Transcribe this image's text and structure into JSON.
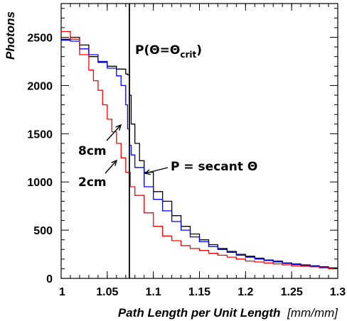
{
  "chart_data": {
    "type": "line",
    "title": "",
    "xlabel": "Path Length per Unit Length",
    "xlabel_unit": "[mm/mm]",
    "ylabel": "Photons",
    "xlim": [
      1.0,
      1.3
    ],
    "ylim": [
      0,
      2850
    ],
    "x_ticks": [
      1,
      1.05,
      1.1,
      1.15,
      1.2,
      1.25,
      1.3
    ],
    "x_tick_labels": [
      "1",
      "1.05",
      "1.1",
      "1.15",
      "1.2",
      "1.25",
      "1.3"
    ],
    "y_ticks": [
      0,
      500,
      1000,
      1500,
      2000,
      2500
    ],
    "y_tick_labels": [
      "0",
      "500",
      "1000",
      "1500",
      "2000",
      "2500"
    ],
    "grid": false,
    "vertical_line": {
      "x": 1.074,
      "color": "#000000"
    },
    "series": [
      {
        "color": "#000000",
        "x": [
          1.0,
          1.01,
          1.02,
          1.03,
          1.04,
          1.05,
          1.06,
          1.07,
          1.072,
          1.074,
          1.076,
          1.08,
          1.085,
          1.09,
          1.1,
          1.11,
          1.12,
          1.13,
          1.14,
          1.15,
          1.16,
          1.17,
          1.18,
          1.19,
          1.2,
          1.21,
          1.22,
          1.23,
          1.24,
          1.25,
          1.26,
          1.27,
          1.28,
          1.29,
          1.3
        ],
        "values": [
          2480,
          2500,
          2420,
          2300,
          2240,
          2200,
          2170,
          2120,
          2110,
          1900,
          1600,
          1400,
          1220,
          1100,
          900,
          800,
          650,
          540,
          460,
          400,
          350,
          310,
          280,
          250,
          230,
          210,
          190,
          180,
          160,
          150,
          140,
          130,
          120,
          110,
          110
        ]
      },
      {
        "color": "#0000ff",
        "x": [
          1.0,
          1.01,
          1.02,
          1.03,
          1.04,
          1.05,
          1.06,
          1.065,
          1.07,
          1.072,
          1.074,
          1.076,
          1.08,
          1.09,
          1.1,
          1.11,
          1.12,
          1.13,
          1.14,
          1.15,
          1.16,
          1.17,
          1.18,
          1.19,
          1.2,
          1.21,
          1.22,
          1.23,
          1.24,
          1.25,
          1.26,
          1.27,
          1.28,
          1.29,
          1.3
        ],
        "values": [
          2470,
          2460,
          2380,
          2320,
          2250,
          2180,
          2100,
          2000,
          1800,
          1550,
          1380,
          1280,
          1150,
          950,
          820,
          700,
          590,
          500,
          430,
          380,
          330,
          300,
          270,
          240,
          220,
          200,
          185,
          170,
          155,
          145,
          135,
          125,
          115,
          105,
          100
        ]
      },
      {
        "color": "#ff0000",
        "x": [
          1.0,
          1.01,
          1.02,
          1.03,
          1.035,
          1.04,
          1.045,
          1.05,
          1.055,
          1.06,
          1.065,
          1.07,
          1.075,
          1.08,
          1.09,
          1.1,
          1.11,
          1.12,
          1.13,
          1.14,
          1.15,
          1.16,
          1.17,
          1.18,
          1.19,
          1.2,
          1.21,
          1.22,
          1.23,
          1.24,
          1.25,
          1.26,
          1.27,
          1.28,
          1.29,
          1.3
        ],
        "values": [
          2560,
          2480,
          2320,
          2160,
          2050,
          1950,
          1800,
          1650,
          1520,
          1400,
          1250,
          1100,
          950,
          860,
          680,
          540,
          440,
          390,
          340,
          310,
          290,
          260,
          240,
          220,
          200,
          180,
          170,
          160,
          150,
          140,
          130,
          125,
          120,
          110,
          100,
          110
        ]
      }
    ],
    "annotations": [
      {
        "text": "P(Θ=Θ",
        "sub": "crit",
        "tail": ")"
      },
      {
        "text": "P = secant Θ"
      },
      {
        "text": "8cm"
      },
      {
        "text": "2cm"
      }
    ]
  }
}
